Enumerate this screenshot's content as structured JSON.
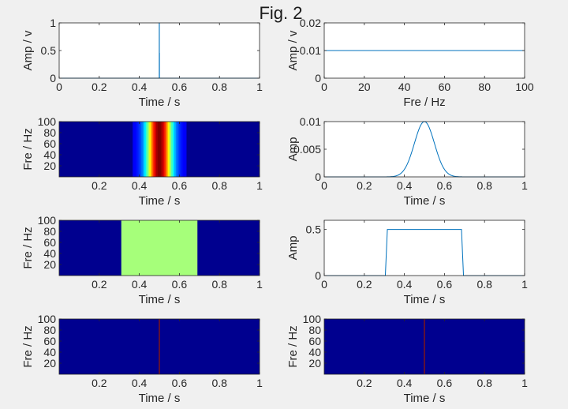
{
  "figure": {
    "title": "Fig. 2"
  },
  "chart_data": [
    {
      "type": "line",
      "xlabel": "Time / s",
      "ylabel": "Amp / v",
      "xlim": [
        0,
        1
      ],
      "ylim": [
        0,
        1
      ],
      "xticks": [
        "0",
        "0.2",
        "0.4",
        "0.6",
        "0.8",
        "1"
      ],
      "yticks": [
        "0",
        "0.5",
        "1"
      ],
      "series": [
        {
          "x": [
            0,
            0.499,
            0.4995,
            0.4995,
            0.5,
            0.5,
            0.5005,
            0.5005,
            0.501,
            1
          ],
          "y": [
            0,
            0,
            0,
            1,
            1,
            0.45,
            0.45,
            0,
            0,
            0
          ],
          "color": "#0072bd"
        }
      ]
    },
    {
      "type": "line",
      "xlabel": "Fre / Hz",
      "ylabel": "Amp / v",
      "xlim": [
        0,
        100
      ],
      "ylim": [
        0,
        0.02
      ],
      "xticks": [
        "0",
        "20",
        "40",
        "60",
        "80",
        "100"
      ],
      "yticks": [
        "0",
        "0.01",
        "0.02"
      ],
      "series": [
        {
          "x": [
            0,
            100
          ],
          "y": [
            0.01,
            0.01
          ],
          "color": "#0072bd"
        }
      ]
    },
    {
      "type": "heatmap",
      "xlabel": "Time / s",
      "ylabel": "Fre / Hz",
      "xlim": [
        0,
        1
      ],
      "ylim": [
        0,
        100
      ],
      "xticks": [
        "0.2",
        "0.4",
        "0.6",
        "0.8",
        "1"
      ],
      "yticks": [
        "20",
        "40",
        "60",
        "80",
        "100"
      ],
      "background": "#00008f",
      "time_profile": {
        "kind": "gaussian",
        "center": 0.5,
        "sigma": 0.045
      }
    },
    {
      "type": "line",
      "xlabel": "Time / s",
      "ylabel": "Amp",
      "xlim": [
        0,
        1
      ],
      "ylim": [
        0,
        0.01
      ],
      "xticks": [
        "0",
        "0.2",
        "0.4",
        "0.6",
        "0.8",
        "1"
      ],
      "yticks": [
        "0",
        "0.005",
        "0.01"
      ],
      "series": [
        {
          "function": "gaussian",
          "center": 0.5,
          "sigma": 0.05,
          "peak": 0.01,
          "x_range": [
            0,
            1
          ],
          "color": "#0072bd"
        }
      ]
    },
    {
      "type": "heatmap",
      "xlabel": "Time / s",
      "ylabel": "Fre / Hz",
      "xlim": [
        0,
        1
      ],
      "ylim": [
        0,
        100
      ],
      "xticks": [
        "0.2",
        "0.4",
        "0.6",
        "0.8",
        "1"
      ],
      "yticks": [
        "20",
        "40",
        "60",
        "80",
        "100"
      ],
      "background": "#00008f",
      "block": {
        "x0": 0.31,
        "x1": 0.69,
        "color": "#a6ff7a"
      }
    },
    {
      "type": "line",
      "xlabel": "Time / s",
      "ylabel": "Amp",
      "xlim": [
        0,
        1
      ],
      "ylim": [
        0,
        0.6
      ],
      "xticks": [
        "0",
        "0.2",
        "0.4",
        "0.6",
        "0.8",
        "1"
      ],
      "yticks": [
        "0",
        "0.5"
      ],
      "series": [
        {
          "x": [
            0,
            0.305,
            0.315,
            0.685,
            0.695,
            1
          ],
          "y": [
            0,
            0,
            0.5,
            0.5,
            0,
            0
          ],
          "color": "#0072bd"
        }
      ]
    },
    {
      "type": "heatmap",
      "xlabel": "Time / s",
      "ylabel": "Fre / Hz",
      "xlim": [
        0,
        1
      ],
      "ylim": [
        0,
        100
      ],
      "xticks": [
        "0.2",
        "0.4",
        "0.6",
        "0.8",
        "1"
      ],
      "yticks": [
        "20",
        "40",
        "60",
        "80",
        "100"
      ],
      "background": "#00008f",
      "line": {
        "x": 0.5,
        "color": "#8f1a0a"
      }
    },
    {
      "type": "heatmap",
      "xlabel": "Time / s",
      "ylabel": "Fre / Hz",
      "xlim": [
        0,
        1
      ],
      "ylim": [
        0,
        100
      ],
      "xticks": [
        "0.2",
        "0.4",
        "0.6",
        "0.8",
        "1"
      ],
      "yticks": [
        "20",
        "40",
        "60",
        "80",
        "100"
      ],
      "background": "#00008f",
      "line": {
        "x": 0.5,
        "color": "#8f1a0a"
      }
    }
  ]
}
